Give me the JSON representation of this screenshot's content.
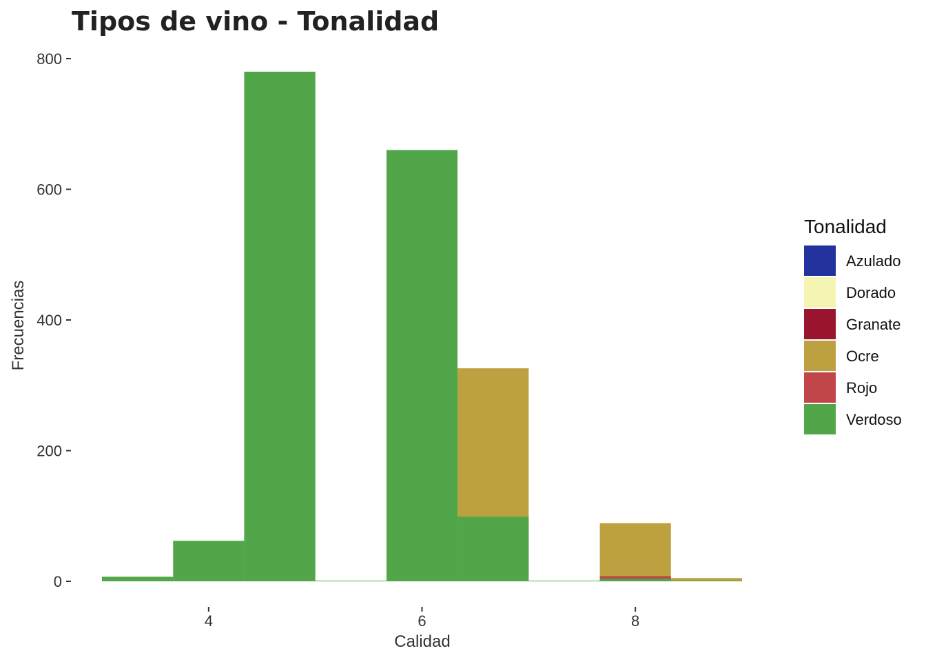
{
  "chart_data": {
    "type": "bar",
    "title": "Tipos de vino - Tonalidad",
    "xlabel": "Calidad",
    "ylabel": "Frecuencias",
    "xlim": [
      3,
      9
    ],
    "ylim": [
      0,
      800
    ],
    "x_ticks": [
      4,
      6,
      8
    ],
    "y_ticks": [
      0,
      200,
      400,
      600,
      800
    ],
    "grid": false,
    "bin_width": 0.667,
    "legend": {
      "title": "Tonalidad",
      "position": "right",
      "entries": [
        {
          "name": "Azulado",
          "color": "#2233A0"
        },
        {
          "name": "Dorado",
          "color": "#F4F5B2"
        },
        {
          "name": "Granate",
          "color": "#9A1530"
        },
        {
          "name": "Ocre",
          "color": "#BDA03F"
        },
        {
          "name": "Rojo",
          "color": "#C0464A"
        },
        {
          "name": "Verdoso",
          "color": "#52A64A"
        }
      ]
    },
    "series": [
      {
        "name": "Ocre",
        "color": "#BDA03F",
        "bins": [
          {
            "x0": 6.333,
            "x1": 7.0,
            "value": 326
          },
          {
            "x0": 7.667,
            "x1": 8.333,
            "value": 89
          },
          {
            "x0": 8.333,
            "x1": 9.0,
            "value": 5
          }
        ]
      },
      {
        "name": "Rojo",
        "color": "#C0464A",
        "bins": [
          {
            "x0": 7.667,
            "x1": 8.333,
            "value": 8
          }
        ]
      },
      {
        "name": "Verdoso",
        "color": "#52A64A",
        "bins": [
          {
            "x0": 3.0,
            "x1": 3.667,
            "value": 7
          },
          {
            "x0": 3.667,
            "x1": 4.333,
            "value": 62
          },
          {
            "x0": 4.333,
            "x1": 5.0,
            "value": 780
          },
          {
            "x0": 5.0,
            "x1": 5.667,
            "value": 1
          },
          {
            "x0": 5.667,
            "x1": 6.333,
            "value": 660
          },
          {
            "x0": 6.333,
            "x1": 7.0,
            "value": 99
          },
          {
            "x0": 7.0,
            "x1": 7.667,
            "value": 1
          },
          {
            "x0": 7.667,
            "x1": 8.333,
            "value": 4
          },
          {
            "x0": 8.333,
            "x1": 9.0,
            "value": 1
          }
        ]
      }
    ]
  }
}
